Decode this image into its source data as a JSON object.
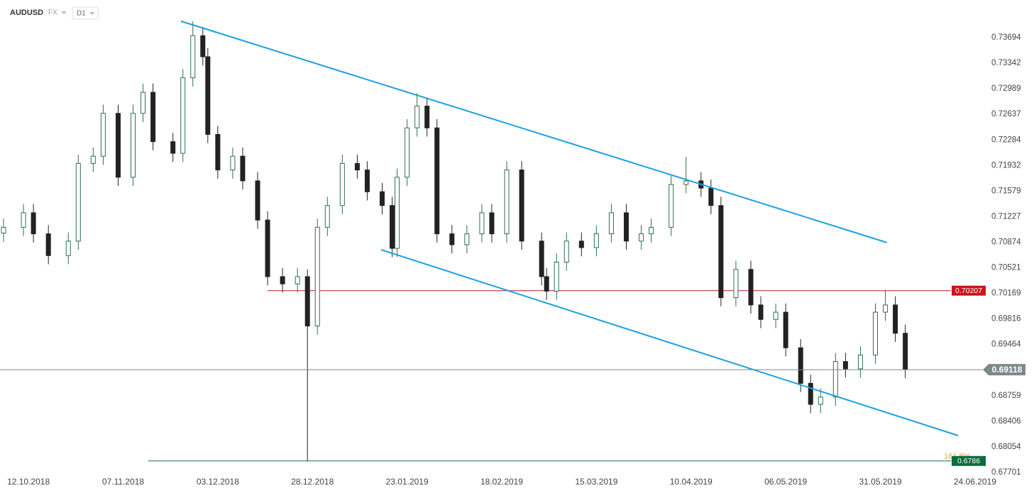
{
  "chart_data": {
    "type": "candlestick",
    "symbol": "AUDUSD",
    "market": "FX",
    "timeframe": "D1",
    "xlim": [
      0,
      200
    ],
    "xticks": [
      {
        "value": 5,
        "label": "12.10.2018"
      },
      {
        "value": 24,
        "label": "07.11.2018"
      },
      {
        "value": 43,
        "label": "03.12.2018"
      },
      {
        "value": 62,
        "label": "28.12.2018"
      },
      {
        "value": 81,
        "label": "23.01.2019"
      },
      {
        "value": 100,
        "label": "18.02.2019"
      },
      {
        "value": 119,
        "label": "15.03.2019"
      },
      {
        "value": 138,
        "label": "10.04.2019"
      },
      {
        "value": 157,
        "label": "06.05.2019"
      },
      {
        "value": 176,
        "label": "31.05.2019"
      },
      {
        "value": 195,
        "label": "24.06.2019"
      }
    ],
    "ylim": [
      0.67682,
      0.74212
    ],
    "yticks": [
      0.73694,
      0.73342,
      0.72989,
      0.72637,
      0.72284,
      0.71932,
      0.71579,
      0.71227,
      0.70874,
      0.70521,
      0.70169,
      0.69816,
      0.69464,
      0.68759,
      0.68406,
      0.68054,
      0.67701
    ],
    "x": [
      0,
      4,
      6,
      9,
      13,
      15,
      18,
      20,
      23,
      26,
      28,
      30,
      34,
      36,
      38,
      40,
      41,
      43,
      46,
      48,
      51,
      53,
      56,
      59,
      61,
      63,
      65,
      68,
      71,
      73,
      76,
      78,
      79,
      81,
      83,
      85,
      87,
      90,
      93,
      96,
      98,
      101,
      104,
      108,
      109,
      111,
      113,
      116,
      119,
      122,
      125,
      128,
      130,
      134,
      137,
      140,
      142,
      144,
      147,
      150,
      152,
      155,
      157,
      160,
      162,
      164,
      167,
      169,
      172,
      175,
      177,
      179,
      181
    ],
    "open": [
      0.71,
      0.7108,
      0.7128,
      0.7099,
      0.7069,
      0.7089,
      0.7196,
      0.7206,
      0.7265,
      0.7177,
      0.7265,
      0.7294,
      0.7226,
      0.721,
      0.7314,
      0.7372,
      0.7343,
      0.7236,
      0.7187,
      0.7206,
      0.7172,
      0.7118,
      0.704,
      0.703,
      0.704,
      0.6972,
      0.7108,
      0.7138,
      0.7196,
      0.7187,
      0.7157,
      0.7138,
      0.7079,
      0.7177,
      0.7245,
      0.7275,
      0.7245,
      0.7099,
      0.7084,
      0.7099,
      0.7128,
      0.7099,
      0.7187,
      0.7089,
      0.704,
      0.702,
      0.706,
      0.7089,
      0.708,
      0.7099,
      0.7128,
      0.7089,
      0.7099,
      0.7108,
      0.7167,
      0.7172,
      0.7162,
      0.7138,
      0.7011,
      0.705,
      0.7001,
      0.6981,
      0.6991,
      0.6942,
      0.6893,
      0.6864,
      0.6874,
      0.6923,
      0.6913,
      0.6932,
      0.6991,
      0.7001,
      0.6962
    ],
    "high": [
      0.712,
      0.714,
      0.714,
      0.7111,
      0.7101,
      0.7208,
      0.7218,
      0.7277,
      0.7277,
      0.7277,
      0.7306,
      0.7306,
      0.7238,
      0.7326,
      0.7392,
      0.7384,
      0.7355,
      0.7248,
      0.7218,
      0.7218,
      0.7184,
      0.713,
      0.7052,
      0.7052,
      0.705,
      0.712,
      0.715,
      0.7208,
      0.7208,
      0.7199,
      0.7169,
      0.715,
      0.7189,
      0.7257,
      0.7293,
      0.7287,
      0.7257,
      0.7111,
      0.7111,
      0.714,
      0.714,
      0.7199,
      0.7199,
      0.7101,
      0.7052,
      0.7072,
      0.7101,
      0.7101,
      0.7111,
      0.714,
      0.714,
      0.7111,
      0.712,
      0.7179,
      0.7205,
      0.7184,
      0.7174,
      0.715,
      0.7062,
      0.7062,
      0.7013,
      0.7003,
      0.7003,
      0.6954,
      0.6905,
      0.6886,
      0.6935,
      0.6935,
      0.6944,
      0.7003,
      0.7022,
      0.7013,
      0.6974
    ],
    "low": [
      0.7088,
      0.7096,
      0.7087,
      0.7057,
      0.7057,
      0.7077,
      0.7184,
      0.7194,
      0.7165,
      0.7165,
      0.7253,
      0.7214,
      0.7198,
      0.7198,
      0.7302,
      0.7331,
      0.7224,
      0.7175,
      0.7175,
      0.716,
      0.7106,
      0.7028,
      0.7018,
      0.7018,
      0.6786,
      0.696,
      0.7096,
      0.7126,
      0.7175,
      0.7145,
      0.7126,
      0.7067,
      0.7067,
      0.7165,
      0.7233,
      0.7233,
      0.7087,
      0.7072,
      0.7072,
      0.7087,
      0.7087,
      0.7087,
      0.7077,
      0.7028,
      0.7008,
      0.7008,
      0.7048,
      0.7068,
      0.7068,
      0.7087,
      0.7077,
      0.7077,
      0.7087,
      0.7096,
      0.7155,
      0.715,
      0.7126,
      0.6999,
      0.6999,
      0.6989,
      0.6969,
      0.6969,
      0.693,
      0.6881,
      0.6852,
      0.6852,
      0.6862,
      0.6901,
      0.6901,
      0.692,
      0.6979,
      0.695,
      0.69
    ],
    "close": [
      0.7108,
      0.7128,
      0.7099,
      0.7069,
      0.7089,
      0.7196,
      0.7206,
      0.7265,
      0.7177,
      0.7265,
      0.7294,
      0.7226,
      0.721,
      0.7314,
      0.7372,
      0.7343,
      0.7236,
      0.7187,
      0.7206,
      0.7172,
      0.7118,
      0.704,
      0.703,
      0.704,
      0.6972,
      0.7108,
      0.7138,
      0.7196,
      0.7187,
      0.7157,
      0.7138,
      0.7079,
      0.7177,
      0.7245,
      0.7275,
      0.7245,
      0.7099,
      0.7084,
      0.7099,
      0.7128,
      0.7099,
      0.7187,
      0.7089,
      0.704,
      0.702,
      0.706,
      0.7089,
      0.708,
      0.7099,
      0.7128,
      0.7089,
      0.7099,
      0.7108,
      0.7167,
      0.7172,
      0.7162,
      0.7138,
      0.7011,
      0.705,
      0.7001,
      0.6981,
      0.6991,
      0.6942,
      0.6893,
      0.6864,
      0.6874,
      0.6923,
      0.6913,
      0.6932,
      0.6991,
      0.7001,
      0.6962,
      0.6912
    ],
    "up_color": "#ffffff",
    "up_border": "#2f6f4f",
    "down_color": "#222222",
    "trendlines": [
      {
        "x": [
          35.6,
          177.3
        ],
        "y": [
          0.7392,
          0.7087
        ],
        "color": "#1ba1e2"
      },
      {
        "x": [
          75.8,
          191.6
        ],
        "y": [
          0.7077,
          0.6821
        ],
        "color": "#1ba1e2"
      }
    ],
    "levels": [
      {
        "value": 0.70207,
        "from": 53,
        "color": "#b71c1c",
        "box": "#c8161d"
      },
      {
        "value": 0.6786,
        "from": 29,
        "color": "#0f6b66",
        "box": "#0d6b3c",
        "note": "161.8%"
      }
    ],
    "current_price": 0.69118,
    "current_color": "#7c898b"
  }
}
